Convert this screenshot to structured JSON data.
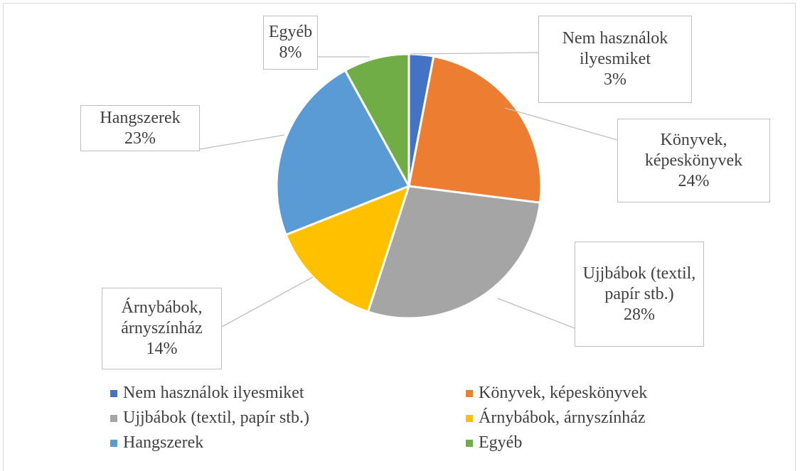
{
  "chart_data": {
    "type": "pie",
    "categories": [
      "Nem használok ilyesmiket",
      "Könyvek, képeskönyvek",
      "Ujjbábok (textil, papír stb.)",
      "Árnybábok, árnyszínház",
      "Hangszerek",
      "Egyéb"
    ],
    "values": [
      3,
      24,
      28,
      14,
      23,
      8
    ],
    "value_labels": [
      "3%",
      "24%",
      "28%",
      "14%",
      "23%",
      "8%"
    ],
    "colors": [
      "#4472c4",
      "#ed7d31",
      "#a5a5a5",
      "#ffc000",
      "#5b9bd5",
      "#70ad47"
    ],
    "legend": "bottom"
  }
}
